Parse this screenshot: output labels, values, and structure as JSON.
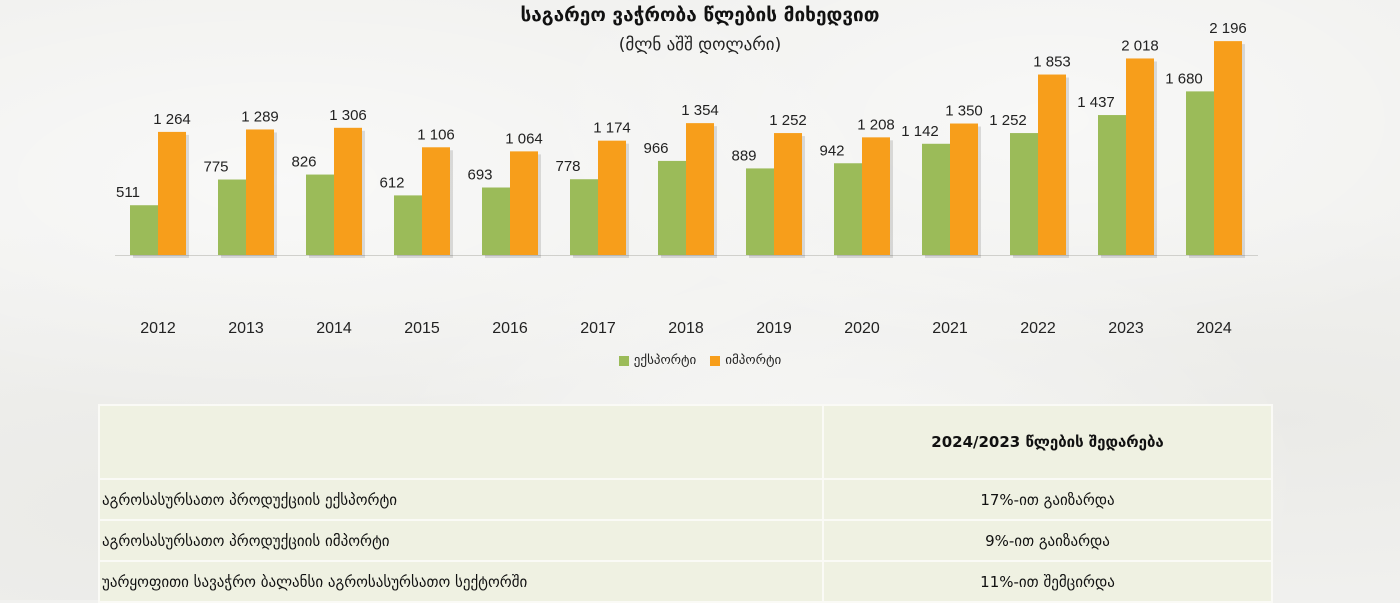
{
  "chart_data": {
    "type": "bar",
    "title": "საგარეო ვაჭრობა წლების მიხედვით",
    "subtitle": "(მლნ აშშ დოლარი)",
    "categories": [
      "2012",
      "2013",
      "2014",
      "2015",
      "2016",
      "2017",
      "2018",
      "2019",
      "2020",
      "2021",
      "2022",
      "2023",
      "2024"
    ],
    "series": [
      {
        "name": "ექსპორტი",
        "color": "#9bbb59",
        "values": [
          511,
          775,
          826,
          612,
          693,
          778,
          966,
          889,
          942,
          1142,
          1252,
          1437,
          1680
        ]
      },
      {
        "name": "იმპორტი",
        "color": "#f79e1b",
        "values": [
          1264,
          1289,
          1306,
          1106,
          1064,
          1174,
          1354,
          1252,
          1208,
          1350,
          1853,
          2018,
          2196
        ]
      }
    ],
    "value_labels": {
      "ექსპორტი": [
        "511",
        "775",
        "826",
        "612",
        "693",
        "778",
        "966",
        "889",
        "942",
        "1 142",
        "1 252",
        "1 437",
        "1 680"
      ],
      "იმპორტი": [
        "1 264",
        "1 289",
        "1 306",
        "1 106",
        "1 064",
        "1 174",
        "1 354",
        "1 252",
        "1 208",
        "1 350",
        "1 853",
        "2 018",
        "2 196"
      ]
    },
    "ylim": [
      0,
      2300
    ],
    "legend_position": "bottom",
    "grid": false
  },
  "table": {
    "header": "2024/2023 წლების შედარება",
    "rows": [
      {
        "label": "აგროსასურსათო პროდუქციის ექსპორტი",
        "value": "17%-ით გაიზარდა"
      },
      {
        "label": "აგროსასურსათო პროდუქციის იმპორტი",
        "value": "9%-ით გაიზარდა"
      },
      {
        "label": "უარყოფითი სავაჭრო ბალანსი აგროსასურსათო სექტორში",
        "value": "11%-ით შემცირდა"
      }
    ]
  }
}
